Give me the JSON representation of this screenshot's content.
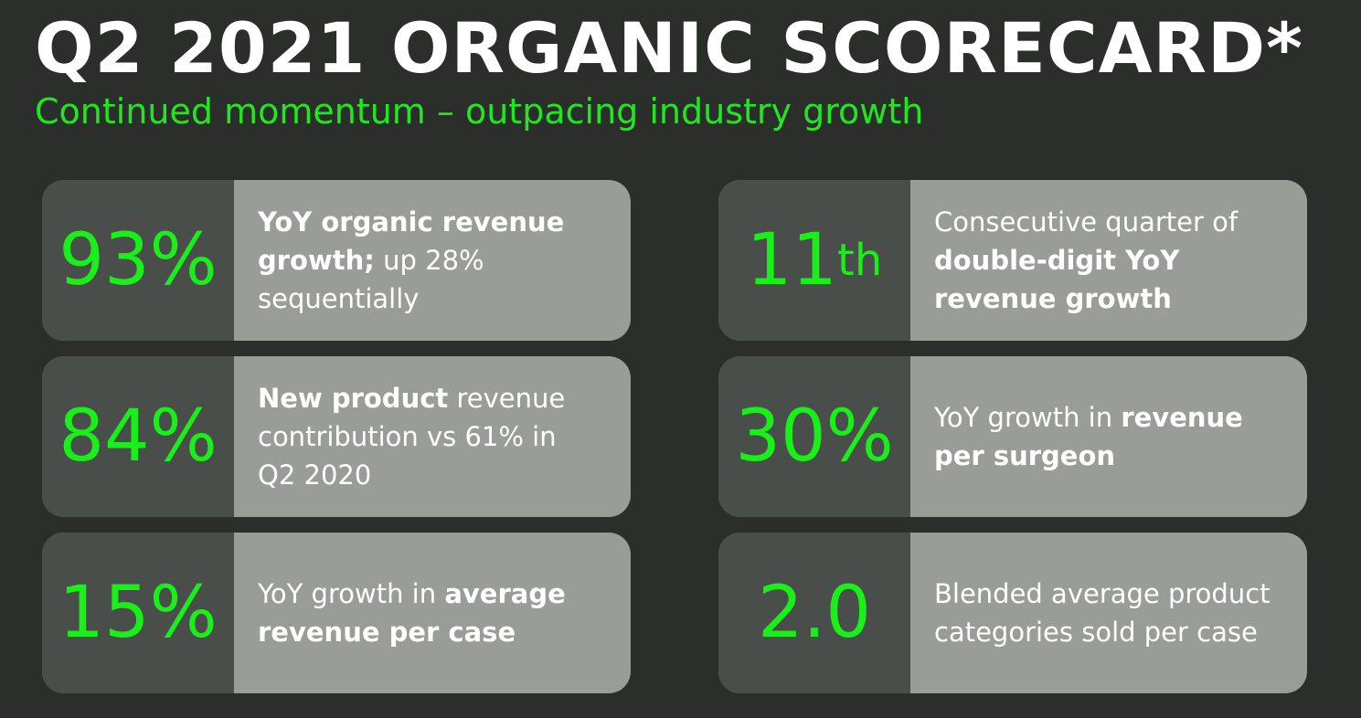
{
  "header": {
    "title": "Q2 2021 ORGANIC SCORECARD*",
    "subtitle": "Continued momentum – outpacing industry growth"
  },
  "cards": [
    {
      "value": "93%",
      "desc": [
        {
          "text": "YoY organic revenue growth;",
          "bold": true
        },
        {
          "text": " up 28% sequentially",
          "bold": false
        }
      ]
    },
    {
      "value": "84%",
      "desc": [
        {
          "text": "New product",
          "bold": true
        },
        {
          "text": " revenue contribution vs 61% in Q2 2020",
          "bold": false
        }
      ]
    },
    {
      "value": "15%",
      "desc": [
        {
          "text": "YoY growth in ",
          "bold": false
        },
        {
          "text": "average revenue per case",
          "bold": true
        }
      ]
    },
    {
      "value": "11",
      "sup": "th",
      "desc": [
        {
          "text": "Consecutive quarter of ",
          "bold": false
        },
        {
          "text": "double-digit YoY revenue growth",
          "bold": true
        }
      ]
    },
    {
      "value": "30%",
      "desc": [
        {
          "text": "YoY growth in ",
          "bold": false
        },
        {
          "text": "revenue per surgeon",
          "bold": true
        }
      ]
    },
    {
      "value": "2.0",
      "desc": [
        {
          "text": "Blended average product categories sold per case",
          "bold": false
        }
      ]
    }
  ]
}
